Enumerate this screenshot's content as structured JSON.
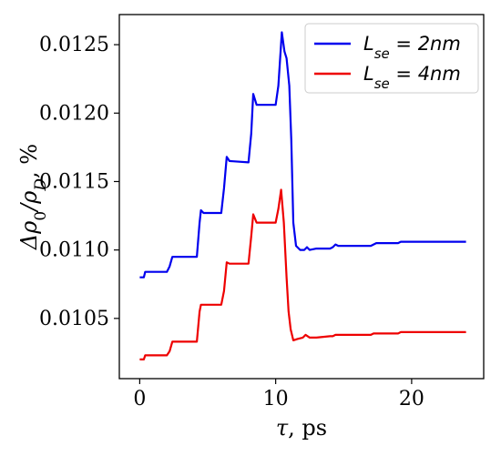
{
  "chart_data": {
    "type": "line",
    "title": "",
    "xlabel_symbol": "τ",
    "xlabel_unit": ", ps",
    "ylabel_base": "Δρ",
    "ylabel_sub0": "0",
    "ylabel_slash": "/ρ",
    "ylabel_subD": "D",
    "ylabel_unit": ", %",
    "xlim": [
      -1.5,
      25.3
    ],
    "ylim": [
      0.01006,
      0.01272
    ],
    "xticks": [
      0,
      10,
      20
    ],
    "xtick_labels": [
      "0",
      "10",
      "20"
    ],
    "yticks": [
      0.0105,
      0.011,
      0.0115,
      0.012,
      0.0125
    ],
    "ytick_labels": [
      "0.0105",
      "0.0110",
      "0.0115",
      "0.0120",
      "0.0125"
    ],
    "grid": false,
    "legend_position": "top-right",
    "legend_labels": [
      "L_se = 2nm",
      "L_se = 4nm"
    ],
    "series": [
      {
        "name": "L_se = 2nm",
        "color": "#0000ee",
        "x": [
          0,
          0.3,
          0.4,
          2.0,
          2.2,
          2.4,
          4.2,
          4.4,
          4.5,
          4.7,
          6.0,
          6.2,
          6.4,
          6.6,
          8.0,
          8.2,
          8.35,
          8.6,
          10.0,
          10.2,
          10.45,
          10.65,
          10.8,
          11.0,
          11.15,
          11.3,
          11.5,
          11.8,
          12.1,
          12.3,
          12.5,
          13.0,
          14.0,
          14.2,
          14.4,
          14.6,
          17.0,
          17.2,
          17.4,
          19.0,
          19.2,
          19.4,
          20,
          24
        ],
        "y": [
          0.0108,
          0.0108,
          0.01084,
          0.01084,
          0.01088,
          0.01095,
          0.01095,
          0.0112,
          0.01129,
          0.01127,
          0.01127,
          0.01145,
          0.01168,
          0.01165,
          0.01164,
          0.01185,
          0.01214,
          0.01206,
          0.01206,
          0.0122,
          0.01259,
          0.01245,
          0.0124,
          0.0122,
          0.0118,
          0.0112,
          0.01103,
          0.011,
          0.011,
          0.01102,
          0.011,
          0.01101,
          0.01101,
          0.01102,
          0.01104,
          0.01103,
          0.01103,
          0.01104,
          0.01105,
          0.01105,
          0.01106,
          0.01106,
          0.01106,
          0.01106
        ]
      },
      {
        "name": "L_se = 4nm",
        "color": "#ee0000",
        "x": [
          0,
          0.3,
          0.4,
          2.0,
          2.2,
          2.4,
          4.2,
          4.4,
          4.5,
          4.7,
          6.0,
          6.2,
          6.4,
          6.6,
          8.0,
          8.2,
          8.35,
          8.6,
          10.0,
          10.2,
          10.4,
          10.6,
          10.8,
          10.95,
          11.1,
          11.3,
          11.6,
          12.0,
          12.2,
          12.5,
          13.0,
          14.0,
          14.2,
          14.4,
          14.6,
          17.0,
          17.2,
          17.4,
          19.0,
          19.2,
          19.4,
          20,
          24
        ],
        "y": [
          0.0102,
          0.0102,
          0.01023,
          0.01023,
          0.01026,
          0.01033,
          0.01033,
          0.01055,
          0.0106,
          0.0106,
          0.0106,
          0.0107,
          0.01091,
          0.0109,
          0.0109,
          0.0111,
          0.01126,
          0.0112,
          0.0112,
          0.0113,
          0.01144,
          0.0112,
          0.0108,
          0.01055,
          0.01042,
          0.01034,
          0.01035,
          0.01036,
          0.01038,
          0.01036,
          0.01036,
          0.01037,
          0.01037,
          0.01038,
          0.01038,
          0.01038,
          0.01039,
          0.01039,
          0.01039,
          0.0104,
          0.0104,
          0.0104,
          0.0104
        ]
      }
    ]
  }
}
